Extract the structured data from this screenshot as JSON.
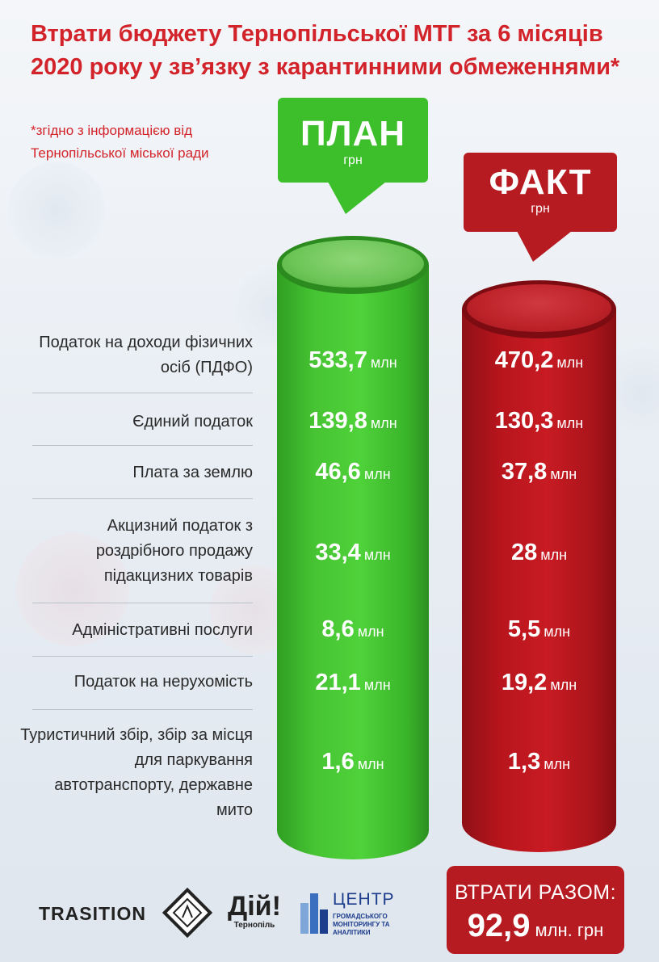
{
  "title": "Втрати бюджету Тернопільської МТГ за 6 місяців 2020 року у зв’язку з карантинними обмеженнями*",
  "note": "*згідно з інформацією від Тернопільської міської ради",
  "plan": {
    "label": "ПЛАН",
    "unit": "грн",
    "color": "#3dbf2c"
  },
  "fact": {
    "label": "ФАКТ",
    "unit": "грн",
    "color": "#b71b22"
  },
  "value_unit": "млн",
  "rows": [
    {
      "label": "Податок на доходи фізичних осіб (ПДФО)",
      "plan": "533,7",
      "fact": "470,2"
    },
    {
      "label": "Єдиний податок",
      "plan": "139,8",
      "fact": "130,3"
    },
    {
      "label": "Плата за землю",
      "plan": "46,6",
      "fact": "37,8"
    },
    {
      "label": "Акцизний податок з роздрібного продажу підакцизних товарів",
      "plan": "33,4",
      "fact": "28"
    },
    {
      "label": "Адміністративні послуги",
      "plan": "8,6",
      "fact": "5,5"
    },
    {
      "label": "Податок на нерухомість",
      "plan": "21,1",
      "fact": "19,2"
    },
    {
      "label": "Туристичний збір, збір за місця для паркування автотранспорту, державне мито",
      "plan": "1,6",
      "fact": "1,3"
    }
  ],
  "total": {
    "label": "ВТРАТИ РАЗОМ:",
    "value": "92,9",
    "unit": "млн. грн"
  },
  "logos": {
    "transition": "TRASITION",
    "diy_title": "Дій!",
    "diy_city": "Тернопіль",
    "center_title": "ЦЕНТР",
    "center_subtitle": "ГРОМАДСЬКОГО МОНІТОРИНГУ ТА АНАЛІТИКИ"
  }
}
